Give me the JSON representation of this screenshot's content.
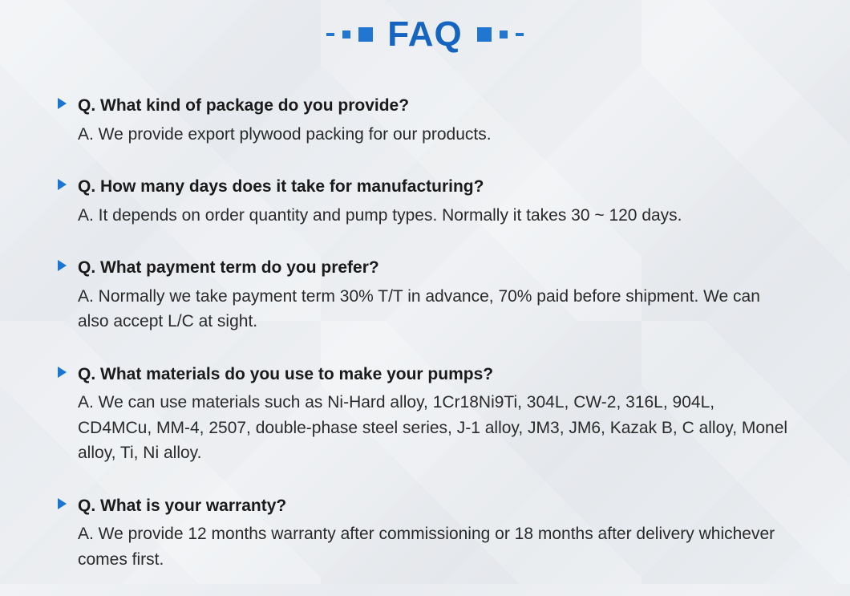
{
  "title": "FAQ",
  "title_color": "#1565c0",
  "title_fontsize": 44,
  "accent_color": "#2176d2",
  "bullet_color": "#1976d2",
  "text_color": "#1a1a1a",
  "answer_color": "#2a2a2a",
  "body_fontsize": 21,
  "faqs": [
    {
      "question": "Q. What kind of package do you provide?",
      "answer": "A. We provide export plywood packing for our products."
    },
    {
      "question": "Q. How many days does it take for manufacturing?",
      "answer": "A. It depends on order quantity and pump types. Normally it takes 30 ~ 120 days."
    },
    {
      "question": "Q. What payment term do you prefer?",
      "answer": "A. Normally we take payment term 30% T/T in advance, 70% paid before shipment. We can also accept L/C at sight."
    },
    {
      "question": "Q. What materials do you use to make your pumps?",
      "answer": "A. We can use materials such as Ni-Hard alloy, 1Cr18Ni9Ti, 304L, CW-2, 316L, 904L, CD4MCu, MM-4, 2507, double-phase steel series, J-1 alloy, JM3, JM6, Kazak B, C alloy, Monel alloy, Ti, Ni alloy."
    },
    {
      "question": "Q. What is your warranty?",
      "answer": "A. We provide 12 months warranty after commissioning or 18 months after delivery whichever comes first."
    }
  ]
}
